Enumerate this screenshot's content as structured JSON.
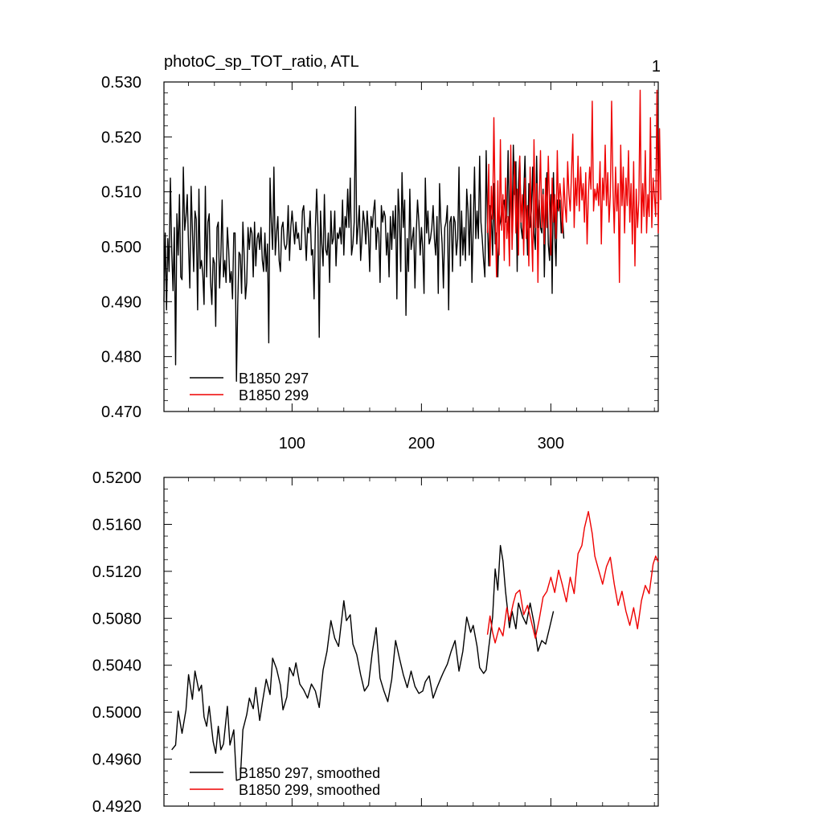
{
  "figure": {
    "title": "photoC_sp_TOT_ratio, ATL",
    "panel_number": "1"
  },
  "chart_data": [
    {
      "type": "line",
      "title": "photoC_sp_TOT_ratio, ATL",
      "panel_label": "1",
      "xlim": [
        1,
        383
      ],
      "ylim": [
        0.47,
        0.53
      ],
      "xticks": [
        100,
        200,
        300
      ],
      "xtick_labels": [
        "100",
        "200",
        "300"
      ],
      "yticks": [
        0.47,
        0.48,
        0.49,
        0.5,
        0.51,
        0.52,
        0.53
      ],
      "ytick_labels": [
        "0.470",
        "0.480",
        "0.490",
        "0.500",
        "0.510",
        "0.520",
        "0.530"
      ],
      "legend": {
        "placement": "bottom-left",
        "entries": [
          "B1850 297",
          "B1850 299"
        ]
      },
      "series": [
        {
          "name": "B1850 297",
          "color": "#000000",
          "x_start": 1,
          "values": [
            0.49,
            0.5025,
            0.4885,
            0.5015,
            0.4955,
            0.5125,
            0.499,
            0.492,
            0.5035,
            0.4785,
            0.506,
            0.4985,
            0.5095,
            0.4945,
            0.494,
            0.5145,
            0.503,
            0.5055,
            0.5095,
            0.5,
            0.4925,
            0.511,
            0.503,
            0.4955,
            0.5065,
            0.505,
            0.4885,
            0.5105,
            0.496,
            0.4975,
            0.495,
            0.4895,
            0.511,
            0.4945,
            0.5045,
            0.506,
            0.4935,
            0.4895,
            0.498,
            0.497,
            0.4855,
            0.5035,
            0.5045,
            0.4925,
            0.4985,
            0.5085,
            0.4945,
            0.4975,
            0.4935,
            0.5035,
            0.4995,
            0.4935,
            0.4955,
            0.4905,
            0.5025,
            0.5025,
            0.4755,
            0.4895,
            0.499,
            0.4985,
            0.4915,
            0.5045,
            0.4985,
            0.4905,
            0.4935,
            0.5035,
            0.4995,
            0.5035,
            0.5025,
            0.4945,
            0.5045,
            0.4965,
            0.5015,
            0.5025,
            0.4995,
            0.5035,
            0.4975,
            0.4955,
            0.5025,
            0.4955,
            0.5005,
            0.4825,
            0.5125,
            0.5045,
            0.4995,
            0.5145,
            0.4985,
            0.5025,
            0.5055,
            0.4975,
            0.4955,
            0.5035,
            0.5045,
            0.5005,
            0.4995,
            0.5005,
            0.5075,
            0.4975,
            0.5035,
            0.5065,
            0.5035,
            0.5005,
            0.5045,
            0.5015,
            0.5025,
            0.4995,
            0.4995,
            0.5065,
            0.5075,
            0.5025,
            0.4975,
            0.5035,
            0.5025,
            0.5065,
            0.4985,
            0.4995,
            0.4905,
            0.5035,
            0.5105,
            0.5035,
            0.4835,
            0.5065,
            0.5005,
            0.4965,
            0.5095,
            0.4995,
            0.4985,
            0.5025,
            0.4935,
            0.5065,
            0.5005,
            0.5015,
            0.5065,
            0.4965,
            0.5025,
            0.5015,
            0.5035,
            0.5005,
            0.5085,
            0.4985,
            0.5055,
            0.5035,
            0.5105,
            0.5035,
            0.5125,
            0.4985,
            0.5005,
            0.5045,
            0.5255,
            0.5005,
            0.5035,
            0.5075,
            0.4975,
            0.5015,
            0.5065,
            0.5045,
            0.5005,
            0.5065,
            0.5025,
            0.4955,
            0.5055,
            0.5035,
            0.5065,
            0.5085,
            0.4995,
            0.5035,
            0.5025,
            0.4935,
            0.5075,
            0.5045,
            0.5065,
            0.5055,
            0.4985,
            0.5025,
            0.4945,
            0.5055,
            0.4995,
            0.5065,
            0.5015,
            0.5075,
            0.4905,
            0.5105,
            0.5055,
            0.4955,
            0.5135,
            0.5035,
            0.5085,
            0.4875,
            0.5015,
            0.4955,
            0.5105,
            0.4995,
            0.5015,
            0.5035,
            0.4925,
            0.5025,
            0.5085,
            0.5045,
            0.4985,
            0.5035,
            0.4995,
            0.4915,
            0.5125,
            0.5025,
            0.5065,
            0.5005,
            0.5015,
            0.5035,
            0.5075,
            0.5015,
            0.4985,
            0.5055,
            0.4915,
            0.5115,
            0.5045,
            0.5005,
            0.4925,
            0.5035,
            0.5045,
            0.5075,
            0.4885,
            0.5045,
            0.5055,
            0.4955,
            0.5055,
            0.5045,
            0.4985,
            0.5015,
            0.5145,
            0.4965,
            0.5065,
            0.4985,
            0.5035,
            0.4975,
            0.5105,
            0.5065,
            0.4985,
            0.5095,
            0.4935,
            0.5035,
            0.5145,
            0.5015,
            0.5065,
            0.5015,
            0.5165,
            0.5045,
            0.5015,
            0.4975,
            0.4945,
            0.5175,
            0.5045,
            0.4965,
            0.5075,
            0.5055,
            0.4985,
            0.5115,
            0.5005,
            0.5025,
            0.4945,
            0.5035,
            0.5045,
            0.5065,
            0.5075,
            0.5085,
            0.5045,
            0.5055,
            0.5175,
            0.5025,
            0.5125,
            0.5025,
            0.5185,
            0.5095,
            0.5155,
            0.4955,
            0.5115,
            0.5165,
            0.5035,
            0.5015,
            0.5095,
            0.5165,
            0.5065,
            0.4985,
            0.5115,
            0.5035,
            0.5065,
            0.5145,
            0.5025,
            0.4995,
            0.5165,
            0.5035,
            0.5085,
            0.5035,
            0.5025,
            0.5105,
            0.4945,
            0.5065,
            0.5135,
            0.5005,
            0.4975,
            0.5095,
            0.4915,
            0.5135,
            0.5025,
            0.4965,
            0.5085,
            0.5065,
            0.5085,
            0.5025,
            0.5055,
            0.5015
          ]
        },
        {
          "name": "B1850 299",
          "color": "#ee0000",
          "x_start": 251,
          "values": [
            0.5025,
            0.515,
            0.4965,
            0.511,
            0.505,
            0.5235,
            0.507,
            0.4945,
            0.512,
            0.4985,
            0.5195,
            0.503,
            0.5095,
            0.4975,
            0.5125,
            0.5015,
            0.5055,
            0.4965,
            0.5185,
            0.4995,
            0.5075,
            0.5155,
            0.5025,
            0.5105,
            0.4985,
            0.5165,
            0.5045,
            0.5095,
            0.4985,
            0.5125,
            0.5015,
            0.5075,
            0.4965,
            0.5145,
            0.5035,
            0.4955,
            0.5195,
            0.5035,
            0.5115,
            0.4935,
            0.5085,
            0.5175,
            0.5035,
            0.5095,
            0.5005,
            0.5125,
            0.5035,
            0.5165,
            0.5075,
            0.4985,
            0.5125,
            0.5045,
            0.5095,
            0.5015,
            0.5175,
            0.5065,
            0.5115,
            0.5085,
            0.5025,
            0.5125,
            0.5075,
            0.5045,
            0.5155,
            0.5095,
            0.5065,
            0.5135,
            0.5205,
            0.5035,
            0.5125,
            0.5075,
            0.5165,
            0.5065,
            0.5145,
            0.5085,
            0.5115,
            0.5045,
            0.5135,
            0.5005,
            0.5095,
            0.5145,
            0.5105,
            0.5265,
            0.5065,
            0.5105,
            0.5085,
            0.5115,
            0.5075,
            0.5155,
            0.5005,
            0.5125,
            0.5085,
            0.5185,
            0.5075,
            0.5135,
            0.5045,
            0.5095,
            0.5265,
            0.5105,
            0.5025,
            0.5145,
            0.5065,
            0.5115,
            0.4935,
            0.5185,
            0.5075,
            0.5145,
            0.5025,
            0.5125,
            0.5075,
            0.5175,
            0.5045,
            0.5115,
            0.5005,
            0.5155,
            0.4965,
            0.5105,
            0.5035,
            0.5085,
            0.5285,
            0.5025,
            0.5115,
            0.5055,
            0.5175,
            0.5025,
            0.5095,
            0.5055,
            0.5235,
            0.5035,
            0.5125,
            0.5095,
            0.5055,
            0.5285,
            0.5025,
            0.5215,
            0.5085
          ]
        }
      ]
    },
    {
      "type": "line",
      "xlim": [
        1,
        383
      ],
      "ylim": [
        0.492,
        0.52
      ],
      "xticks": [
        100,
        200,
        300
      ],
      "xtick_labels": [],
      "yticks": [
        0.492,
        0.496,
        0.5,
        0.504,
        0.508,
        0.512,
        0.516,
        0.52
      ],
      "ytick_labels": [
        "0.4920",
        "0.4960",
        "0.5000",
        "0.5040",
        "0.5080",
        "0.5120",
        "0.5160",
        "0.5200"
      ],
      "legend": {
        "placement": "bottom-left",
        "entries": [
          "B1850 297, smoothed",
          "B1850 299, smoothed"
        ]
      },
      "series": [
        {
          "name": "B1850 297, smoothed",
          "color": "#000000",
          "x": [
            7,
            10,
            12,
            15,
            18,
            20,
            23,
            25,
            28,
            30,
            32,
            34,
            36,
            39,
            41,
            43,
            45,
            47,
            50,
            52,
            55,
            57,
            60,
            62,
            65,
            67,
            70,
            72,
            75,
            77,
            80,
            83,
            85,
            88,
            91,
            93,
            96,
            98,
            101,
            103,
            106,
            109,
            112,
            115,
            118,
            121,
            124,
            127,
            130,
            133,
            136,
            140,
            142,
            145,
            147,
            150,
            153,
            156,
            159,
            162,
            165,
            168,
            171,
            174,
            177,
            180,
            183,
            186,
            189,
            192,
            195,
            198,
            201,
            203,
            206,
            209,
            212,
            215,
            217,
            220,
            223,
            226,
            229,
            232,
            235,
            238,
            240,
            243,
            245,
            248,
            250,
            252,
            255,
            257,
            259,
            261,
            263,
            265,
            268,
            270,
            273,
            275,
            278,
            281,
            284,
            287,
            290,
            293,
            296,
            299,
            302
          ],
          "y": [
            0.4968,
            0.4972,
            0.5001,
            0.4982,
            0.5002,
            0.5032,
            0.5011,
            0.5035,
            0.5018,
            0.5023,
            0.4996,
            0.4988,
            0.5005,
            0.4975,
            0.4965,
            0.4988,
            0.4968,
            0.4973,
            0.5005,
            0.4972,
            0.4985,
            0.4942,
            0.4943,
            0.4985,
            0.4998,
            0.5012,
            0.5003,
            0.5021,
            0.4993,
            0.5008,
            0.5028,
            0.5015,
            0.5046,
            0.5037,
            0.5023,
            0.5002,
            0.5013,
            0.5038,
            0.5031,
            0.5042,
            0.5024,
            0.5019,
            0.5012,
            0.5024,
            0.5018,
            0.5004,
            0.5036,
            0.5052,
            0.5078,
            0.5063,
            0.5056,
            0.5095,
            0.5078,
            0.5083,
            0.5058,
            0.5049,
            0.5032,
            0.5018,
            0.5023,
            0.5051,
            0.5072,
            0.5029,
            0.5018,
            0.5009,
            0.5028,
            0.5061,
            0.5046,
            0.5032,
            0.5021,
            0.5035,
            0.5022,
            0.5016,
            0.5018,
            0.5026,
            0.5031,
            0.5012,
            0.5021,
            0.5029,
            0.5034,
            0.5041,
            0.5052,
            0.5061,
            0.5035,
            0.5052,
            0.5081,
            0.5068,
            0.5074,
            0.5056,
            0.5038,
            0.5033,
            0.5036,
            0.5055,
            0.5081,
            0.5122,
            0.5104,
            0.5142,
            0.5129,
            0.5103,
            0.5072,
            0.5086,
            0.5071,
            0.5093,
            0.5082,
            0.5075,
            0.5093,
            0.5076,
            0.5052,
            0.5061,
            0.5058,
            0.5072,
            0.5086
          ]
        },
        {
          "name": "B1850 299, smoothed",
          "color": "#ee0000",
          "x": [
            251,
            253,
            255,
            257,
            260,
            263,
            266,
            268,
            271,
            273,
            276,
            279,
            282,
            285,
            288,
            291,
            294,
            297,
            300,
            303,
            306,
            309,
            312,
            315,
            318,
            321,
            324,
            326,
            329,
            332,
            334,
            337,
            340,
            343,
            346,
            349,
            352,
            355,
            358,
            361,
            364,
            367,
            370,
            373,
            376,
            379,
            381,
            383
          ],
          "y": [
            0.5066,
            0.5082,
            0.5068,
            0.5059,
            0.5072,
            0.5065,
            0.5089,
            0.5078,
            0.5093,
            0.5101,
            0.5104,
            0.5083,
            0.5091,
            0.5077,
            0.5063,
            0.5079,
            0.5098,
            0.5103,
            0.5115,
            0.5102,
            0.5121,
            0.5108,
            0.5094,
            0.5115,
            0.5101,
            0.5135,
            0.5142,
            0.5157,
            0.5171,
            0.5152,
            0.5133,
            0.5121,
            0.5109,
            0.5124,
            0.5132,
            0.5109,
            0.5091,
            0.5103,
            0.5086,
            0.5074,
            0.5089,
            0.5071,
            0.5095,
            0.5108,
            0.5101,
            0.5126,
            0.5133,
            0.5128
          ]
        }
      ]
    }
  ]
}
